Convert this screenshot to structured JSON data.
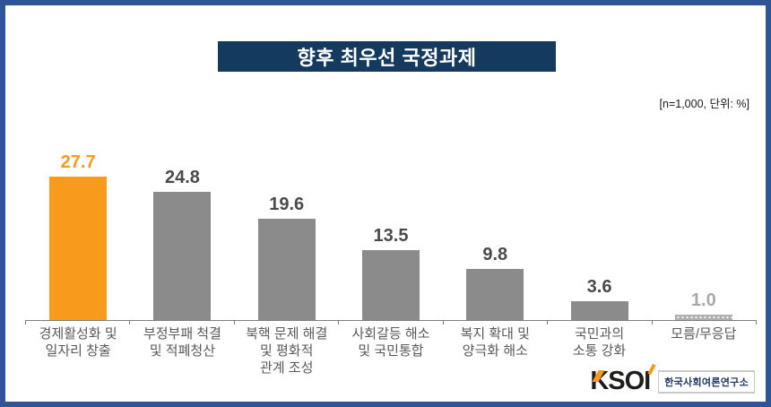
{
  "title": "향후 최우선 국정과제",
  "note": "[n=1,000, 단위: %]",
  "chart_data": {
    "type": "bar",
    "title": "향후 최우선 국정과제",
    "subtitle": "[n=1,000, 단위: %]",
    "unit": "%",
    "sample": "n=1,000",
    "categories": [
      "경제활성화 및\n일자리 창출",
      "부정부패 척결\n및 적폐청산",
      "북핵 문제 해결\n및 평화적\n관계 조성",
      "사회갈등 해소\n및 국민통합",
      "복지 확대 및\n양극화 해소",
      "국민과의\n소통 강화",
      "모름/무응답"
    ],
    "values": [
      27.7,
      24.8,
      19.6,
      13.5,
      9.8,
      3.6,
      1.0
    ],
    "value_labels": [
      "27.7",
      "24.8",
      "19.6",
      "13.5",
      "9.8",
      "3.6",
      "1.0"
    ],
    "xlabel": "",
    "ylabel": "",
    "ylim": [
      0,
      30
    ],
    "grid": false,
    "legend": "none",
    "value_label_position": "above-bars",
    "highlight_index": 0,
    "dotted_index": 6
  },
  "colors": {
    "frame": "#2F5597",
    "navy": "#153A60",
    "accent": "#F89A1C",
    "bar": "#8B8B8B",
    "bar-dotted": "#AFAFAF",
    "value": "#4A4A4A",
    "muted": "#A9A9A9",
    "label": "#595959",
    "axis": "#7F7F7F"
  },
  "logo": {
    "text": "KSOI",
    "subtitle": "한국사회여론연구소"
  }
}
